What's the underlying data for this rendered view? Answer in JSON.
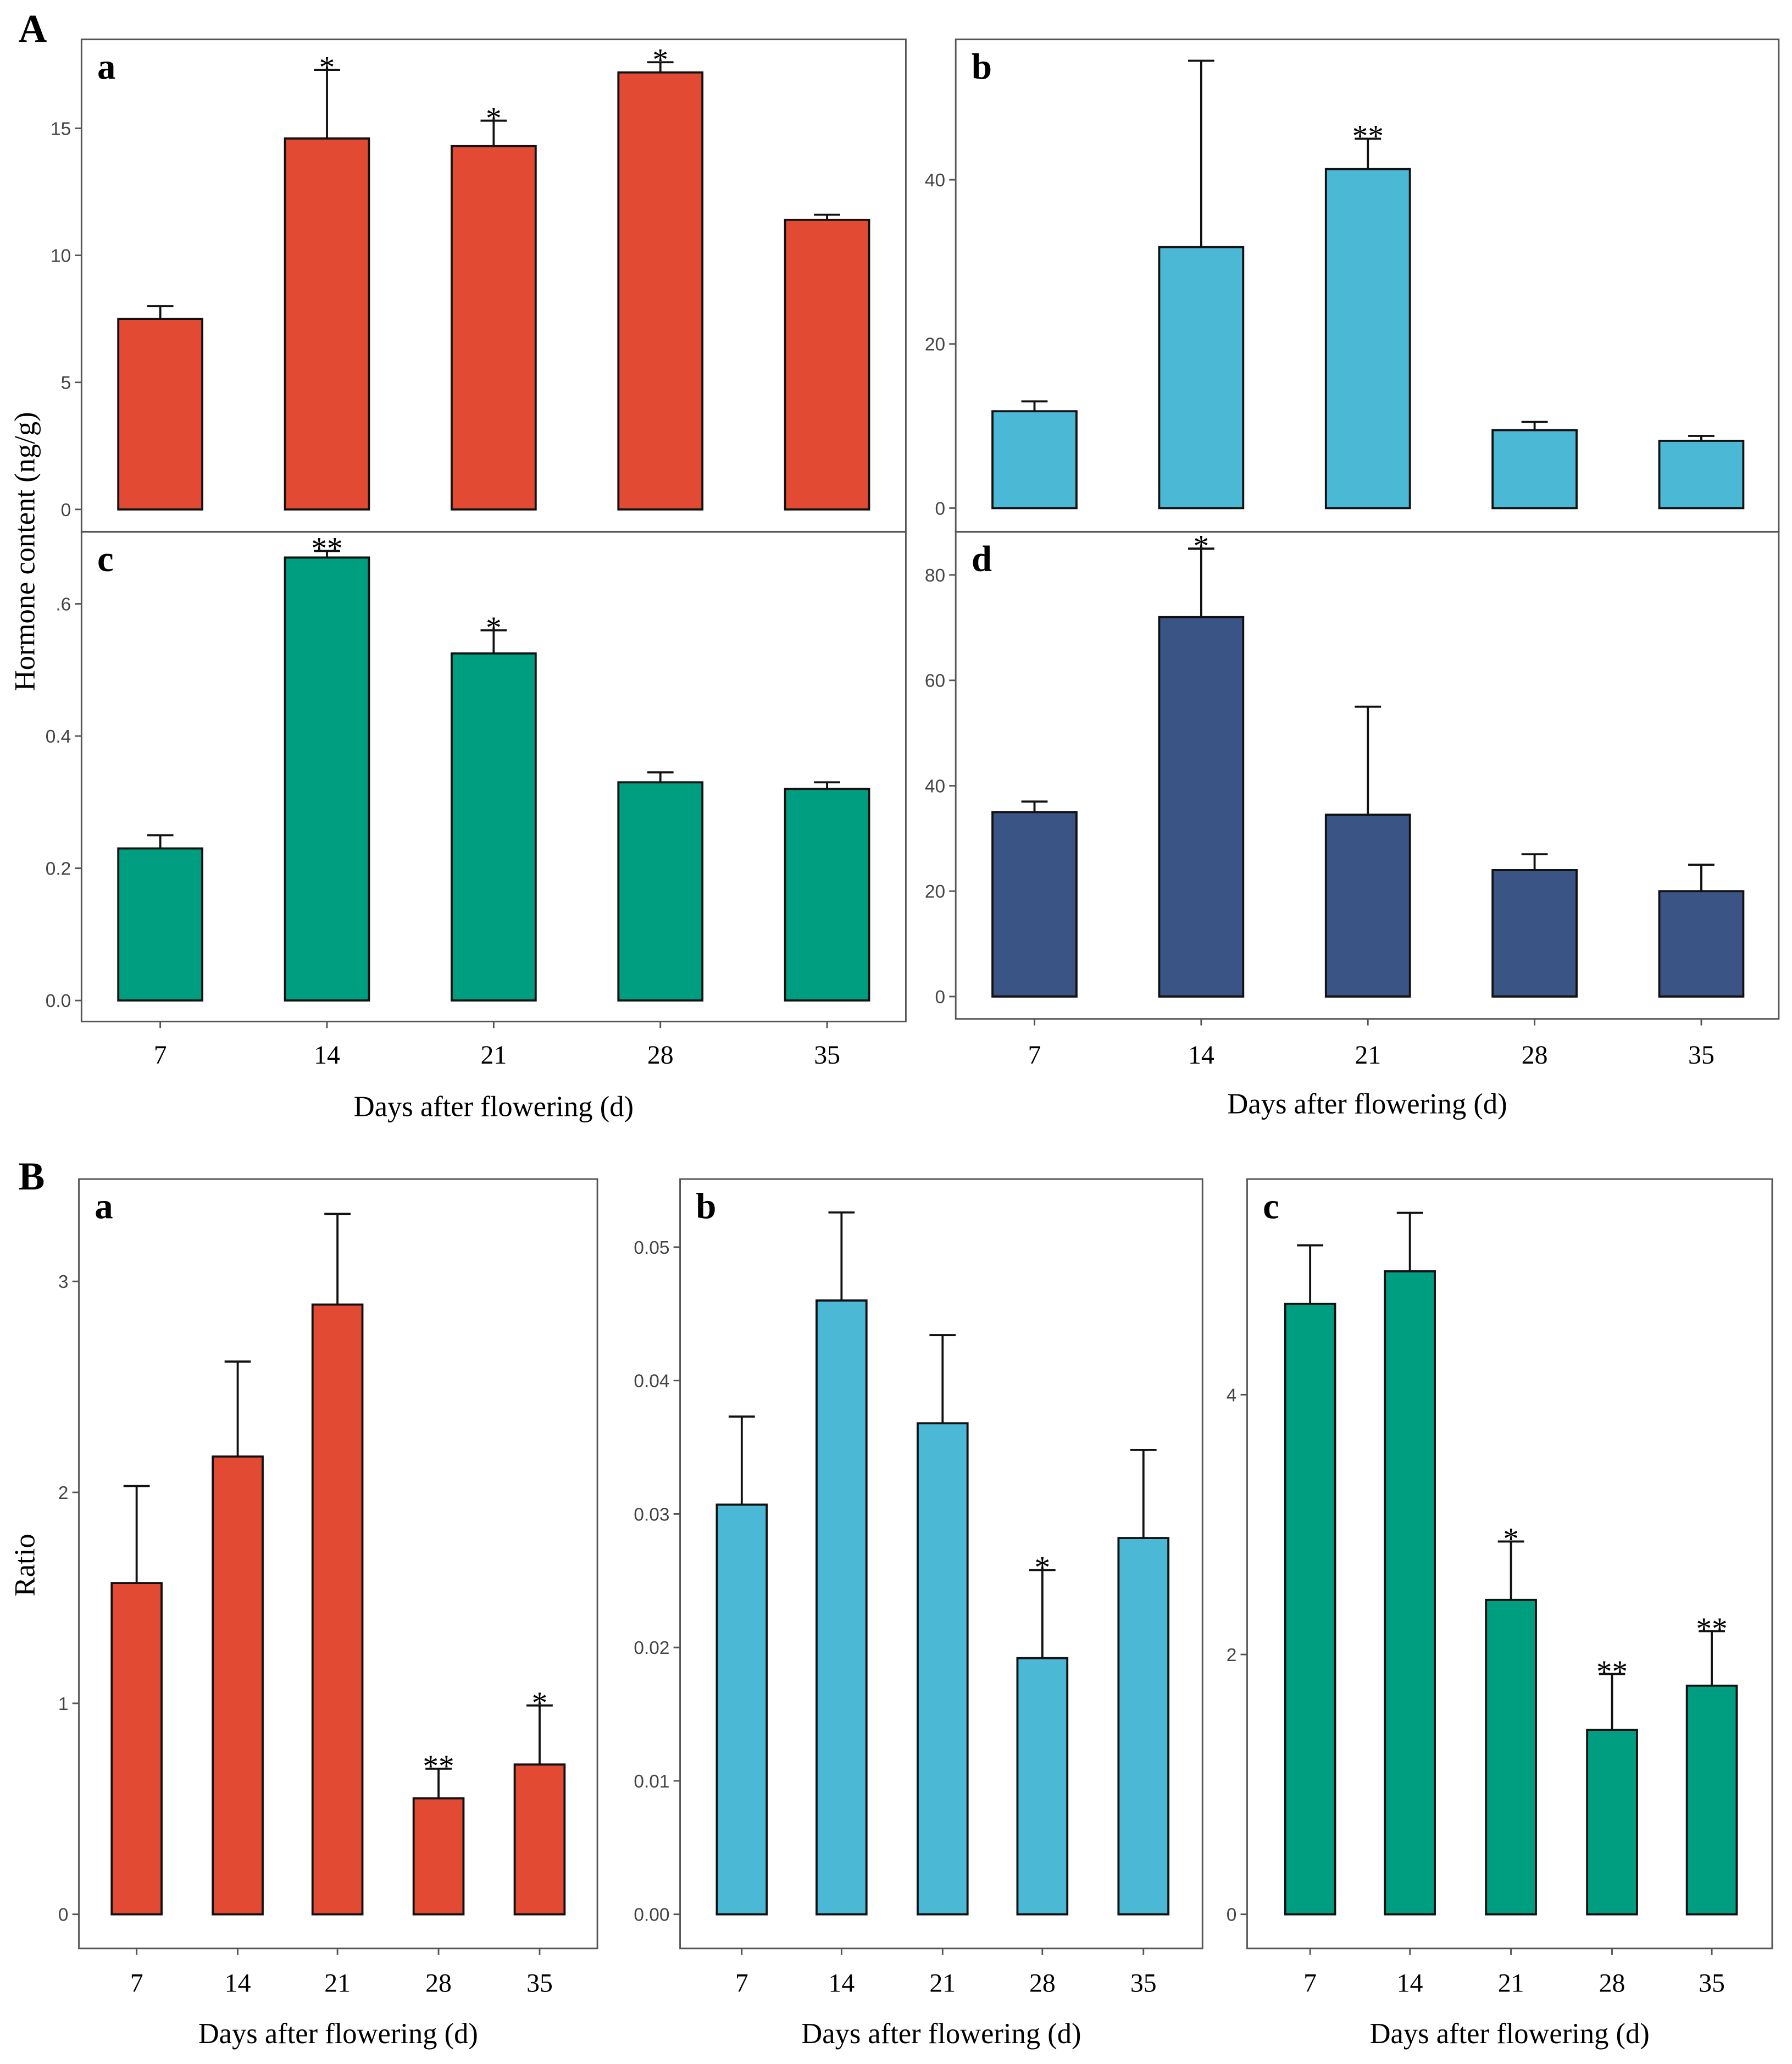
{
  "figure_labels": {
    "A": "A",
    "B": "B"
  },
  "y_labels": {
    "A": "Hormone content (ng/g)",
    "B": "Ratio"
  },
  "colors": {
    "red": "#E34A33",
    "blue": "#4BB9D6",
    "green": "#009E80",
    "navy": "#3B5486"
  },
  "chart_data": [
    {
      "id": "A-a",
      "type": "bar",
      "panel_label": "a",
      "categories": [
        "7",
        "14",
        "21",
        "28",
        "35"
      ],
      "values": [
        7.5,
        14.6,
        14.3,
        17.2,
        11.4
      ],
      "error_upper": [
        8.0,
        17.3,
        15.3,
        17.6,
        11.6
      ],
      "significance": [
        "",
        "*",
        "*",
        "*",
        ""
      ],
      "yticks": [
        0,
        5,
        10,
        15
      ],
      "ytick_labels": [
        "0",
        "5",
        "10",
        "15"
      ],
      "ylim": [
        0,
        18.5
      ],
      "color": "#E34A33",
      "xlabel": "",
      "ylabel": "Hormone content (ng/g)"
    },
    {
      "id": "A-b",
      "type": "bar",
      "panel_label": "b",
      "categories": [
        "7",
        "14",
        "21",
        "28",
        "35"
      ],
      "values": [
        11.8,
        31.8,
        41.3,
        9.5,
        8.2
      ],
      "error_upper": [
        13.0,
        54.5,
        45.0,
        10.5,
        8.8
      ],
      "significance": [
        "",
        "",
        "**",
        "",
        ""
      ],
      "yticks": [
        0,
        20,
        40
      ],
      "ytick_labels": [
        "0",
        "20",
        "40"
      ],
      "ylim": [
        0,
        57.1
      ],
      "color": "#4BB9D6",
      "xlabel": "",
      "ylabel": ""
    },
    {
      "id": "A-c",
      "type": "bar",
      "panel_label": "c",
      "categories": [
        "7",
        "14",
        "21",
        "28",
        "35"
      ],
      "values": [
        0.23,
        0.67,
        0.525,
        0.33,
        0.32
      ],
      "error_upper": [
        0.25,
        0.68,
        0.56,
        0.345,
        0.33
      ],
      "significance": [
        "",
        "**",
        "*",
        "",
        ""
      ],
      "yticks": [
        0,
        0.2,
        0.4,
        0.6
      ],
      "ytick_labels": [
        "0.0",
        "0.2",
        "0.4",
        ".6"
      ],
      "ylim": [
        0,
        0.709
      ],
      "color": "#009E80",
      "xlabel": "Days after flowering (d)",
      "ylabel": "Hormone content (ng/g)"
    },
    {
      "id": "A-d",
      "type": "bar",
      "panel_label": "d",
      "categories": [
        "7",
        "14",
        "21",
        "28",
        "35"
      ],
      "values": [
        35,
        72,
        34.5,
        24,
        20
      ],
      "error_upper": [
        37,
        85,
        55,
        27,
        25
      ],
      "significance": [
        "",
        "*",
        "",
        "",
        ""
      ],
      "yticks": [
        0,
        20,
        40,
        60,
        80
      ],
      "ytick_labels": [
        "0",
        "20",
        "40",
        "60",
        "80"
      ],
      "ylim": [
        0,
        88.2
      ],
      "color": "#3B5486",
      "xlabel": "Days after flowering (d)",
      "ylabel": ""
    },
    {
      "id": "B-a",
      "type": "bar",
      "panel_label": "a",
      "categories": [
        "7",
        "14",
        "21",
        "28",
        "35"
      ],
      "values": [
        1.57,
        2.17,
        2.89,
        0.55,
        0.71
      ],
      "error_upper": [
        2.03,
        2.62,
        3.32,
        0.69,
        0.99
      ],
      "significance": [
        "",
        "",
        "",
        "**",
        "*"
      ],
      "yticks": [
        0,
        1,
        2,
        3
      ],
      "ytick_labels": [
        "0",
        "1",
        "2",
        "3"
      ],
      "ylim": [
        0,
        3.485
      ],
      "color": "#E34A33",
      "xlabel": "Days after flowering (d)",
      "ylabel": "Ratio"
    },
    {
      "id": "B-b",
      "type": "bar",
      "panel_label": "b",
      "categories": [
        "7",
        "14",
        "21",
        "28",
        "35"
      ],
      "values": [
        0.0307,
        0.046,
        0.0368,
        0.0192,
        0.0282
      ],
      "error_upper": [
        0.0373,
        0.0526,
        0.0434,
        0.0258,
        0.0348
      ],
      "significance": [
        "",
        "",
        "",
        "*",
        ""
      ],
      "yticks": [
        0,
        0.01,
        0.02,
        0.03,
        0.04,
        0.05
      ],
      "ytick_labels": [
        "0.00",
        "0.01",
        "0.02",
        "0.03",
        "0.04",
        "0.05"
      ],
      "ylim": [
        0,
        0.0551
      ],
      "color": "#4BB9D6",
      "xlabel": "Days after flowering (d)",
      "ylabel": ""
    },
    {
      "id": "B-c",
      "type": "bar",
      "panel_label": "c",
      "categories": [
        "7",
        "14",
        "21",
        "28",
        "35"
      ],
      "values": [
        4.7,
        4.95,
        2.42,
        1.42,
        1.76
      ],
      "error_upper": [
        5.15,
        5.4,
        2.87,
        1.85,
        2.18
      ],
      "significance": [
        "",
        "",
        "*",
        "**",
        "**"
      ],
      "yticks": [
        0,
        2,
        4
      ],
      "ytick_labels": [
        "0",
        "2",
        "4"
      ],
      "ylim": [
        0,
        5.66
      ],
      "color": "#009E80",
      "xlabel": "Days after flowering (d)",
      "ylabel": ""
    }
  ]
}
